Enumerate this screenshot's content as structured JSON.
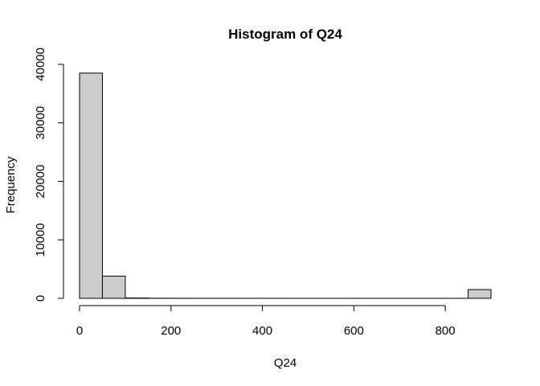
{
  "chart_data": {
    "type": "bar",
    "title": "Histogram of Q24",
    "xlabel": "Q24",
    "ylabel": "Frequency",
    "bins": [
      {
        "start": 0,
        "end": 50,
        "count": 38500
      },
      {
        "start": 50,
        "end": 100,
        "count": 3800
      },
      {
        "start": 100,
        "end": 150,
        "count": 60
      },
      {
        "start": 150,
        "end": 200,
        "count": 20
      },
      {
        "start": 200,
        "end": 250,
        "count": 15
      },
      {
        "start": 250,
        "end": 300,
        "count": 10
      },
      {
        "start": 300,
        "end": 350,
        "count": 10
      },
      {
        "start": 350,
        "end": 400,
        "count": 8
      },
      {
        "start": 400,
        "end": 450,
        "count": 8
      },
      {
        "start": 450,
        "end": 500,
        "count": 5
      },
      {
        "start": 500,
        "end": 550,
        "count": 5
      },
      {
        "start": 550,
        "end": 600,
        "count": 5
      },
      {
        "start": 600,
        "end": 650,
        "count": 5
      },
      {
        "start": 650,
        "end": 700,
        "count": 5
      },
      {
        "start": 700,
        "end": 750,
        "count": 5
      },
      {
        "start": 750,
        "end": 800,
        "count": 5
      },
      {
        "start": 800,
        "end": 850,
        "count": 5
      },
      {
        "start": 850,
        "end": 900,
        "count": 1500
      }
    ],
    "x_ticks": [
      0,
      200,
      400,
      600,
      800
    ],
    "y_ticks": [
      0,
      10000,
      20000,
      30000,
      40000
    ],
    "xlim": [
      0,
      900
    ],
    "ylim": [
      0,
      40000
    ],
    "bar_color": "#cccccc",
    "edge_color": "#000000",
    "grid": false
  }
}
